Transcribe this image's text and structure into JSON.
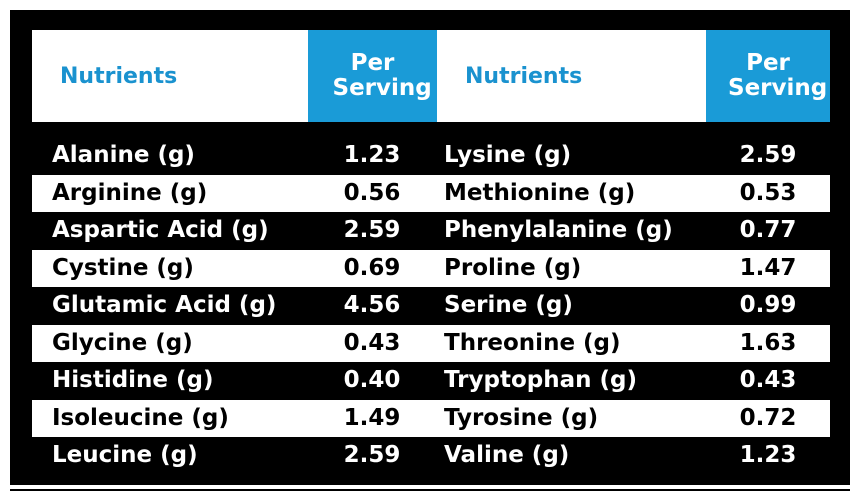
{
  "table": {
    "header": [
      "Nutrients",
      "Per Serving",
      "Nutrients",
      "Per Serving"
    ],
    "rows": [
      [
        "Alanine (g)",
        "1.23",
        "Lysine (g)",
        "2.59"
      ],
      [
        "Arginine (g)",
        "0.56",
        "Methionine (g)",
        "0.53"
      ],
      [
        "Aspartic Acid (g)",
        "2.59",
        "Phenylalanine (g)",
        "0.77"
      ],
      [
        "Cystine (g)",
        "0.69",
        "Proline (g)",
        "1.47"
      ],
      [
        "Glutamic Acid (g)",
        "4.56",
        "Serine (g)",
        "0.99"
      ],
      [
        "Glycine (g)",
        "0.43",
        "Threonine (g)",
        "1.63"
      ],
      [
        "Histidine (g)",
        "0.40",
        "Tryptophan (g)",
        "0.43"
      ],
      [
        "Isoleucine (g)",
        "1.49",
        "Tyrosine (g)",
        "0.72"
      ],
      [
        "Leucine (g)",
        "2.59",
        "Valine (g)",
        "1.23"
      ]
    ]
  }
}
